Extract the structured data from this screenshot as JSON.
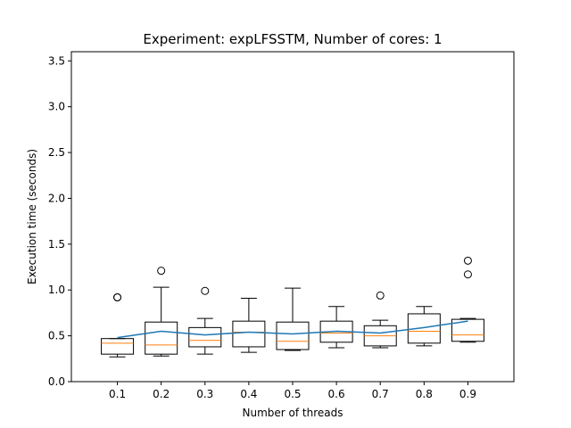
{
  "chart_data": {
    "type": "box",
    "title": "Experiment: expLFSSTM, Number of cores: 1",
    "xlabel": "Number of threads",
    "ylabel": "Execution time (seconds)",
    "ylim": [
      0,
      3.6
    ],
    "yticks": [
      "0.0",
      "0.5",
      "1.0",
      "1.5",
      "2.0",
      "2.5",
      "3.0",
      "3.5"
    ],
    "categories": [
      "0.1",
      "0.2",
      "0.3",
      "0.4",
      "0.5",
      "0.6",
      "0.7",
      "0.8",
      "0.9"
    ],
    "grid": false,
    "colors": {
      "box": "#000000",
      "median": "#ff7f0e",
      "mean_line": "#1f77b4"
    },
    "boxes": [
      {
        "whisker_low": 0.27,
        "q1": 0.3,
        "median": 0.42,
        "q3": 0.47,
        "whisker_high": 0.47,
        "outliers": [
          0.92,
          0.92
        ]
      },
      {
        "whisker_low": 0.28,
        "q1": 0.3,
        "median": 0.4,
        "q3": 0.65,
        "whisker_high": 1.03,
        "outliers": [
          1.21
        ]
      },
      {
        "whisker_low": 0.3,
        "q1": 0.38,
        "median": 0.45,
        "q3": 0.59,
        "whisker_high": 0.69,
        "outliers": [
          0.99
        ]
      },
      {
        "whisker_low": 0.32,
        "q1": 0.38,
        "median": 0.54,
        "q3": 0.66,
        "whisker_high": 0.91,
        "outliers": []
      },
      {
        "whisker_low": 0.34,
        "q1": 0.35,
        "median": 0.44,
        "q3": 0.65,
        "whisker_high": 1.02,
        "outliers": []
      },
      {
        "whisker_low": 0.37,
        "q1": 0.43,
        "median": 0.53,
        "q3": 0.66,
        "whisker_high": 0.82,
        "outliers": []
      },
      {
        "whisker_low": 0.37,
        "q1": 0.39,
        "median": 0.5,
        "q3": 0.61,
        "whisker_high": 0.67,
        "outliers": [
          0.94
        ]
      },
      {
        "whisker_low": 0.39,
        "q1": 0.42,
        "median": 0.55,
        "q3": 0.74,
        "whisker_high": 0.82,
        "outliers": []
      },
      {
        "whisker_low": 0.43,
        "q1": 0.44,
        "median": 0.51,
        "q3": 0.68,
        "whisker_high": 0.69,
        "outliers": [
          1.17,
          1.32
        ]
      }
    ],
    "mean_line": [
      0.48,
      0.55,
      0.51,
      0.54,
      0.52,
      0.55,
      0.53,
      0.59,
      0.66
    ]
  }
}
